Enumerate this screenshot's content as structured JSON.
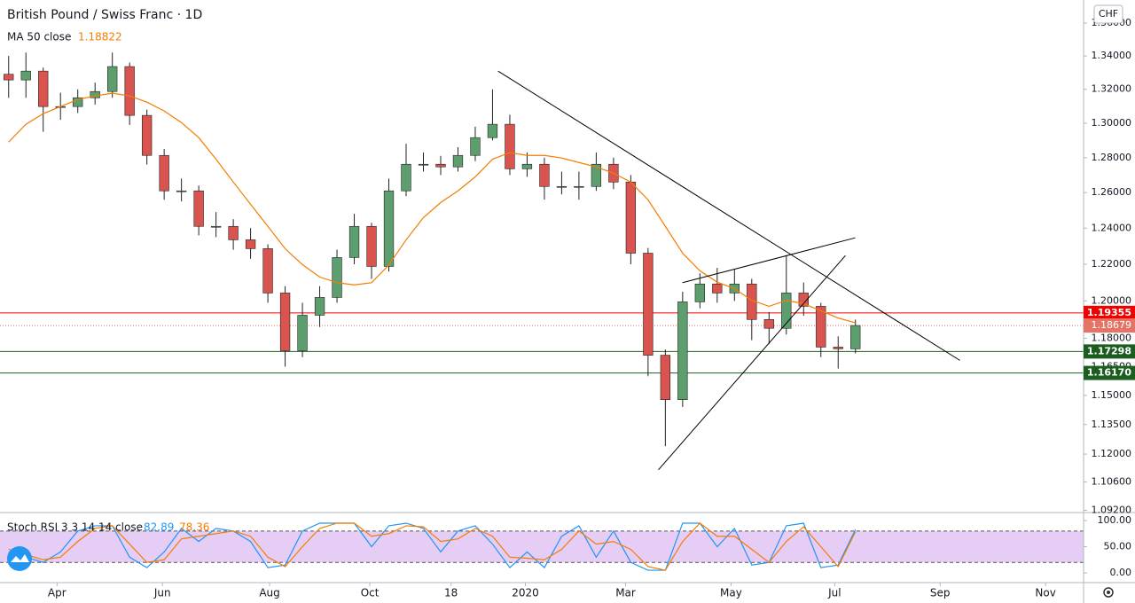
{
  "chart_data": [
    {
      "type": "candlestick",
      "title": "British Pound / Swiss Franc · 1D",
      "currency": "CHF",
      "log_scale": true,
      "grid": false,
      "up_color": "#5d9e6e",
      "down_color": "#d9534f",
      "wick_color": "#222222",
      "x": [
        5,
        15,
        25,
        35,
        45,
        55,
        65,
        75,
        85,
        95,
        105,
        115,
        125,
        135,
        145,
        155,
        165,
        175,
        185,
        195,
        205,
        215,
        225,
        235,
        245,
        255,
        265,
        275,
        285,
        295,
        305,
        315,
        325,
        335,
        345,
        355,
        365,
        375,
        385,
        395,
        405,
        415,
        425,
        435,
        445,
        455,
        465,
        475,
        485,
        495
      ],
      "open": [
        1.329,
        1.3256,
        1.3309,
        1.3098,
        1.3098,
        1.315,
        1.3187,
        1.3336,
        1.3046,
        1.2813,
        1.261,
        1.261,
        1.241,
        1.241,
        1.2335,
        1.2286,
        1.2043,
        1.1734,
        1.1923,
        1.2019,
        1.2237,
        1.241,
        1.2188,
        1.261,
        1.2762,
        1.2762,
        1.2747,
        1.2813,
        1.2916,
        1.2994,
        1.2736,
        1.2762,
        1.2635,
        1.2635,
        1.2635,
        1.2762,
        1.266,
        1.2261,
        1.171,
        1.1478,
        1.1995,
        1.2092,
        1.2043,
        1.2092,
        1.19,
        1.1853,
        1.2043,
        1.1971,
        1.1753,
        1.1744
      ],
      "high": [
        1.34,
        1.342,
        1.333,
        1.318,
        1.32,
        1.324,
        1.342,
        1.336,
        1.308,
        1.285,
        1.268,
        1.264,
        1.249,
        1.245,
        1.24,
        1.231,
        1.208,
        1.199,
        1.208,
        1.228,
        1.248,
        1.243,
        1.268,
        1.288,
        1.283,
        1.281,
        1.286,
        1.298,
        1.32,
        1.305,
        1.283,
        1.28,
        1.272,
        1.272,
        1.283,
        1.28,
        1.27,
        1.229,
        1.174,
        1.205,
        1.215,
        1.218,
        1.217,
        1.212,
        1.194,
        1.225,
        1.21,
        1.199,
        1.181,
        1.19
      ],
      "low": [
        1.315,
        1.315,
        1.295,
        1.302,
        1.306,
        1.311,
        1.315,
        1.299,
        1.276,
        1.256,
        1.255,
        1.236,
        1.235,
        1.228,
        1.223,
        1.199,
        1.165,
        1.17,
        1.186,
        1.199,
        1.22,
        1.212,
        1.216,
        1.258,
        1.272,
        1.27,
        1.272,
        1.278,
        1.29,
        1.27,
        1.269,
        1.256,
        1.259,
        1.256,
        1.261,
        1.262,
        1.22,
        1.16,
        1.124,
        1.144,
        1.196,
        1.199,
        1.2,
        1.179,
        1.177,
        1.182,
        1.192,
        1.17,
        1.164,
        1.172
      ],
      "close": [
        1.3256,
        1.3309,
        1.3098,
        1.3098,
        1.315,
        1.3187,
        1.3336,
        1.3046,
        1.2813,
        1.261,
        1.261,
        1.241,
        1.241,
        1.2335,
        1.2286,
        1.2043,
        1.1734,
        1.1923,
        1.2019,
        1.2237,
        1.241,
        1.2188,
        1.261,
        1.2762,
        1.2762,
        1.2747,
        1.2813,
        1.2916,
        1.2994,
        1.2736,
        1.2762,
        1.2635,
        1.2635,
        1.2635,
        1.2762,
        1.266,
        1.2261,
        1.171,
        1.1478,
        1.1995,
        1.2092,
        1.2043,
        1.2092,
        1.19,
        1.1853,
        1.2043,
        1.1971,
        1.1753,
        1.1744,
        1.18679
      ],
      "series": [
        {
          "name": "MA 50 close",
          "color": "#f57c00",
          "values": [
            1.289,
            1.2994,
            1.3056,
            1.3098,
            1.314,
            1.3161,
            1.3177,
            1.3161,
            1.3124,
            1.3072,
            1.3004,
            1.2916,
            1.2791,
            1.266,
            1.2534,
            1.241,
            1.2286,
            1.2198,
            1.213,
            1.2099,
            1.2087,
            1.2099,
            1.2196,
            1.2335,
            1.2459,
            1.2544,
            1.261,
            1.269,
            1.2791,
            1.2829,
            1.2813,
            1.2813,
            1.2798,
            1.2772,
            1.2747,
            1.2711,
            1.266,
            1.2559,
            1.241,
            1.2261,
            1.2164,
            1.2102,
            1.2067,
            1.2003,
            1.1971,
            1.2003,
            1.1985,
            1.1947,
            1.1908,
            1.18822
          ]
        }
      ],
      "levels": [
        {
          "price": 1.19355,
          "color": "#f20000"
        },
        {
          "price": 1.17298,
          "color": "#1b5e20"
        },
        {
          "price": 1.1617,
          "label": "1.16170",
          "color": "#1b5e20"
        }
      ],
      "last_color": "#e57368",
      "trendlines": [
        {
          "x": [
            288.2,
            555.4
          ],
          "y": [
            1.3309,
            1.1683
          ]
        },
        {
          "x": [
            381.0,
            489.2
          ],
          "y": [
            1.1121,
            1.2248
          ]
        },
        {
          "x": [
            394.9,
            494.9
          ],
          "y": [
            1.2099,
            1.2346
          ]
        }
      ],
      "xlim": [
        0,
        627
      ],
      "xticks": [
        {
          "value": 33,
          "label": "Apr"
        },
        {
          "value": 94,
          "label": "Jun"
        },
        {
          "value": 156,
          "label": "Aug"
        },
        {
          "value": 214,
          "label": "Oct"
        },
        {
          "value": 261,
          "label": "18"
        },
        {
          "value": 304,
          "label": "2020"
        },
        {
          "value": 362,
          "label": "Mar"
        },
        {
          "value": 423,
          "label": "May"
        },
        {
          "value": 483,
          "label": "Jul"
        },
        {
          "value": 544,
          "label": "Sep"
        },
        {
          "value": 605,
          "label": "Nov"
        }
      ],
      "ylim": [
        1.0909,
        1.3742
      ],
      "yticks": [
        {
          "value": 1.36,
          "label": "1.36000"
        },
        {
          "value": 1.34,
          "label": "1.34000"
        },
        {
          "value": 1.32,
          "label": "1.32000"
        },
        {
          "value": 1.3,
          "label": "1.30000"
        },
        {
          "value": 1.28,
          "label": "1.28000"
        },
        {
          "value": 1.26,
          "label": "1.26000"
        },
        {
          "value": 1.24,
          "label": "1.24000"
        },
        {
          "value": 1.22,
          "label": "1.22000"
        },
        {
          "value": 1.2,
          "label": "1.20000"
        },
        {
          "value": 1.18,
          "label": "1.18000"
        },
        {
          "value": 1.165,
          "label": "1.16500"
        },
        {
          "value": 1.15,
          "label": "1.15000"
        },
        {
          "value": 1.135,
          "label": "1.13500"
        },
        {
          "value": 1.12,
          "label": "1.12000"
        },
        {
          "value": 1.106,
          "label": "1.10600"
        },
        {
          "value": 1.092,
          "label": "1.09200"
        }
      ]
    },
    {
      "type": "line",
      "title": "Stoch RSI 3 3 14 14 close",
      "x": [
        5,
        15,
        25,
        35,
        45,
        55,
        65,
        75,
        85,
        95,
        105,
        115,
        125,
        135,
        145,
        155,
        165,
        175,
        185,
        195,
        205,
        215,
        225,
        235,
        245,
        255,
        265,
        275,
        285,
        295,
        305,
        315,
        325,
        335,
        345,
        355,
        365,
        375,
        385,
        395,
        405,
        415,
        425,
        435,
        445,
        455,
        465,
        475,
        485,
        495
      ],
      "series": [
        {
          "name": "K",
          "color": "#2196f3",
          "values": [
            40,
            30,
            20,
            40,
            80,
            90,
            90,
            30,
            10,
            40,
            85,
            60,
            85,
            80,
            60,
            10,
            15,
            80,
            95,
            95,
            95,
            50,
            90,
            95,
            85,
            40,
            80,
            90,
            55,
            10,
            40,
            10,
            70,
            90,
            30,
            80,
            20,
            5,
            5,
            95,
            95,
            50,
            85,
            15,
            20,
            90,
            95,
            10,
            15,
            82.89
          ]
        },
        {
          "name": "D",
          "color": "#f57c00",
          "values": [
            45,
            35,
            25,
            30,
            60,
            85,
            90,
            55,
            20,
            25,
            65,
            70,
            75,
            80,
            70,
            30,
            12,
            50,
            85,
            95,
            95,
            70,
            75,
            90,
            88,
            60,
            65,
            85,
            70,
            30,
            28,
            25,
            45,
            80,
            55,
            60,
            45,
            12,
            5,
            60,
            95,
            70,
            70,
            45,
            20,
            60,
            88,
            50,
            12,
            78.36
          ]
        }
      ],
      "bands": [
        20,
        80
      ],
      "band_color": "#e5cdf5",
      "xlim": [
        0,
        627
      ],
      "ylim": [
        -18.6,
        113.6
      ],
      "yticks": [
        {
          "value": 100,
          "label": "100.00"
        },
        {
          "value": 50,
          "label": "50.00"
        },
        {
          "value": 0,
          "label": "0.00"
        }
      ]
    }
  ]
}
